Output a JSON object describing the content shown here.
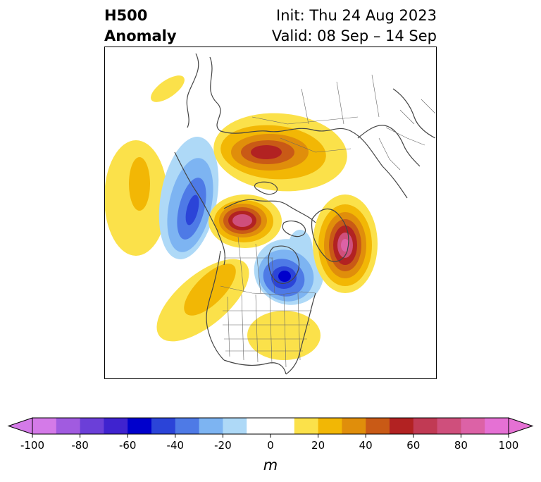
{
  "header": {
    "title_line1": "H500",
    "title_line2": "Anomaly",
    "init": "Init: Thu 24 Aug 2023",
    "valid": "Valid: 08 Sep – 14 Sep"
  },
  "colorbar": {
    "unit": "m",
    "ticks": [
      "-100",
      "-80",
      "-60",
      "-40",
      "-20",
      "0",
      "20",
      "40",
      "60",
      "80",
      "100"
    ],
    "range": [
      -100,
      100
    ],
    "interval": 10,
    "colors": [
      "#d47ae8",
      "#a15be0",
      "#6b3fd8",
      "#3f23cf",
      "#0000cc",
      "#2b44d8",
      "#4e7ae6",
      "#7db4f2",
      "#aed9f7",
      "#ffffff",
      "#ffffff",
      "#fbe14a",
      "#f2b705",
      "#e08e0b",
      "#c95a16",
      "#b22222",
      "#c13a54",
      "#cf4f7c",
      "#dc62a6",
      "#e571d4"
    ]
  },
  "map": {
    "projection": "north polar stereographic",
    "features": [
      "coastlines",
      "country borders",
      "US state borders",
      "Canadian province borders"
    ],
    "anomaly_centers": [
      {
        "region": "NE Pacific (W of Alaska)",
        "sign": "positive",
        "max_m": 30
      },
      {
        "region": "Gulf of Alaska / W Canada",
        "sign": "negative",
        "max_m": -50
      },
      {
        "region": "Northern Siberia",
        "sign": "positive",
        "max_m": 60
      },
      {
        "region": "Yukon / Mackenzie",
        "sign": "positive",
        "max_m": 80
      },
      {
        "region": "Greenland",
        "sign": "positive",
        "max_m": 80
      },
      {
        "region": "Hudson Bay",
        "sign": "negative",
        "max_m": -60
      },
      {
        "region": "Western US",
        "sign": "positive",
        "max_m": 30
      },
      {
        "region": "Eastern US",
        "sign": "positive",
        "max_m": 20
      }
    ]
  }
}
